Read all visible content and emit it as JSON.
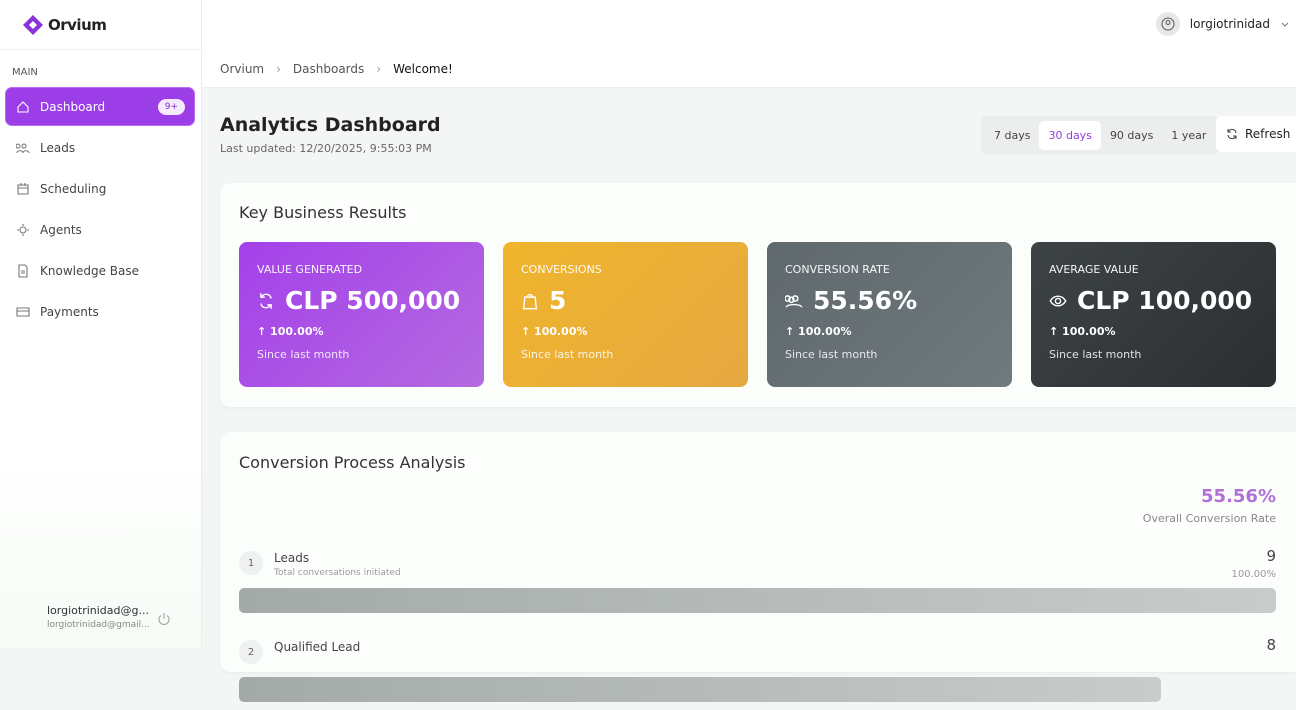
{
  "brand": "Orvium",
  "sidebar": {
    "section": "MAIN",
    "nav": [
      {
        "label": "Dashboard",
        "badge": "9+",
        "active": true
      },
      {
        "label": "Leads"
      },
      {
        "label": "Scheduling"
      },
      {
        "label": "Agents"
      },
      {
        "label": "Knowledge Base"
      },
      {
        "label": "Payments"
      }
    ],
    "user": {
      "name": "lorgiotrinidad@g...",
      "email": "lorgiotrinidad@gmail..."
    }
  },
  "topbar": {
    "user": "lorgiotrinidad"
  },
  "breadcrumb": [
    "Orvium",
    "Dashboards",
    "Welcome!"
  ],
  "header": {
    "title": "Analytics Dashboard",
    "updated": "Last updated: 12/20/2025, 9:55:03 PM"
  },
  "ranges": [
    {
      "label": "7 days"
    },
    {
      "label": "30 days",
      "selected": true
    },
    {
      "label": "90 days"
    },
    {
      "label": "1 year"
    }
  ],
  "refresh": "Refresh",
  "kpi": {
    "title": "Key Business Results",
    "cards": [
      {
        "label": "VALUE GENERATED",
        "value": "CLP 500,000",
        "change": "100.00%",
        "note": "Since last month"
      },
      {
        "label": "CONVERSIONS",
        "value": "5",
        "change": "100.00%",
        "note": "Since last month"
      },
      {
        "label": "CONVERSION RATE",
        "value": "55.56%",
        "change": "100.00%",
        "note": "Since last month"
      },
      {
        "label": "AVERAGE VALUE",
        "value": "CLP 100,000",
        "change": "100.00%",
        "note": "Since last month"
      }
    ]
  },
  "funnel": {
    "title": "Conversion Process Analysis",
    "rate": "55.56%",
    "rate_label": "Overall Conversion Rate",
    "steps": [
      {
        "number": 1,
        "label": "Leads",
        "sub": "Total conversations initiated",
        "count": 9,
        "pct": "100.00%"
      },
      {
        "number": 2,
        "label": "Qualified Lead",
        "count": 8
      }
    ]
  }
}
